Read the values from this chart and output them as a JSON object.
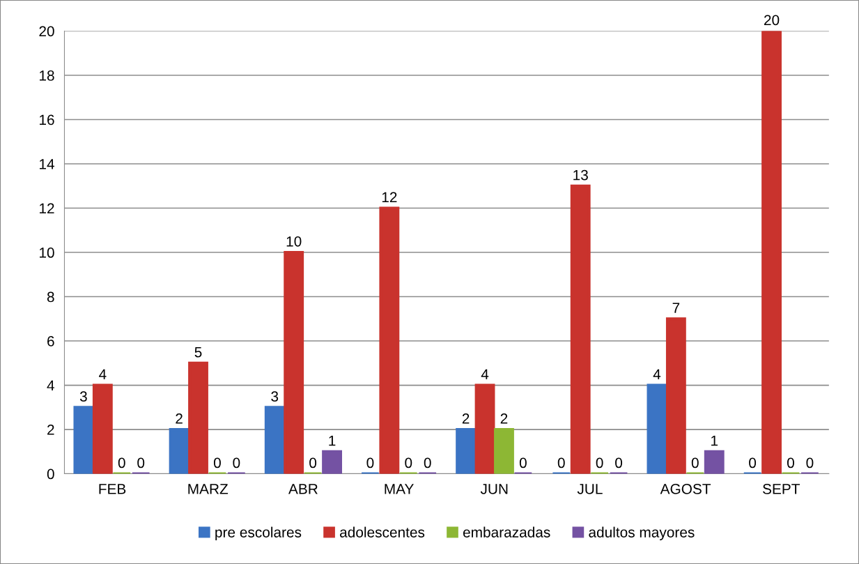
{
  "chart_data": {
    "type": "bar",
    "categories": [
      "FEB",
      "MARZ",
      "ABR",
      "MAY",
      "JUN",
      "JUL",
      "AGOST",
      "SEPT"
    ],
    "series": [
      {
        "name": "pre escolares",
        "color": "#3b74c4",
        "values": [
          3,
          2,
          3,
          0,
          2,
          0,
          4,
          0
        ]
      },
      {
        "name": "adolescentes",
        "color": "#c9332d",
        "values": [
          4,
          5,
          10,
          12,
          4,
          13,
          7,
          20
        ]
      },
      {
        "name": "embarazadas",
        "color": "#8db734",
        "values": [
          0,
          0,
          0,
          0,
          2,
          0,
          0,
          0
        ]
      },
      {
        "name": "adultos mayores",
        "color": "#7452a3",
        "values": [
          0,
          0,
          1,
          0,
          0,
          0,
          1,
          0
        ]
      }
    ],
    "ylim": [
      0,
      20
    ],
    "yticks": [
      0,
      2,
      4,
      6,
      8,
      10,
      12,
      14,
      16,
      18,
      20
    ],
    "grid": "y",
    "legend": "bottom",
    "data_labels": true
  }
}
